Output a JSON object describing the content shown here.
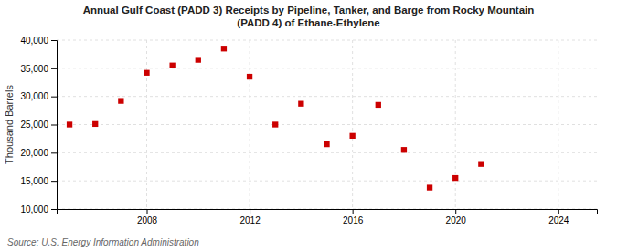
{
  "chart_data": {
    "type": "scatter",
    "title": "Annual Gulf Coast (PADD 3) Receipts by Pipeline, Tanker, and Barge from Rocky Mountain\n(PADD 4) of Ethane-Ethylene",
    "ylabel": "Thousand Barrels",
    "source": "Source: U.S. Energy Information Administration",
    "x": [
      2005,
      2006,
      2007,
      2008,
      2009,
      2010,
      2011,
      2012,
      2013,
      2014,
      2015,
      2016,
      2017,
      2018,
      2019,
      2020,
      2021
    ],
    "values": [
      25000,
      25100,
      29200,
      34200,
      35500,
      36500,
      38500,
      33500,
      25000,
      28700,
      21500,
      23000,
      28500,
      20500,
      13800,
      15500,
      18000
    ],
    "color": "#cc0000",
    "marker": "square",
    "xlim": [
      2004.5,
      2025.5
    ],
    "xticks": [
      2008,
      2012,
      2016,
      2020,
      2024
    ],
    "ylim": [
      10000,
      40000
    ],
    "yticks": [
      {
        "value": 10000,
        "label": "10,000"
      },
      {
        "value": 15000,
        "label": "15,000"
      },
      {
        "value": 20000,
        "label": "20,000"
      },
      {
        "value": 25000,
        "label": "25,000"
      },
      {
        "value": 30000,
        "label": "30,000"
      },
      {
        "value": 35000,
        "label": "35,000"
      },
      {
        "value": 40000,
        "label": "40,000"
      }
    ],
    "grid": true
  }
}
